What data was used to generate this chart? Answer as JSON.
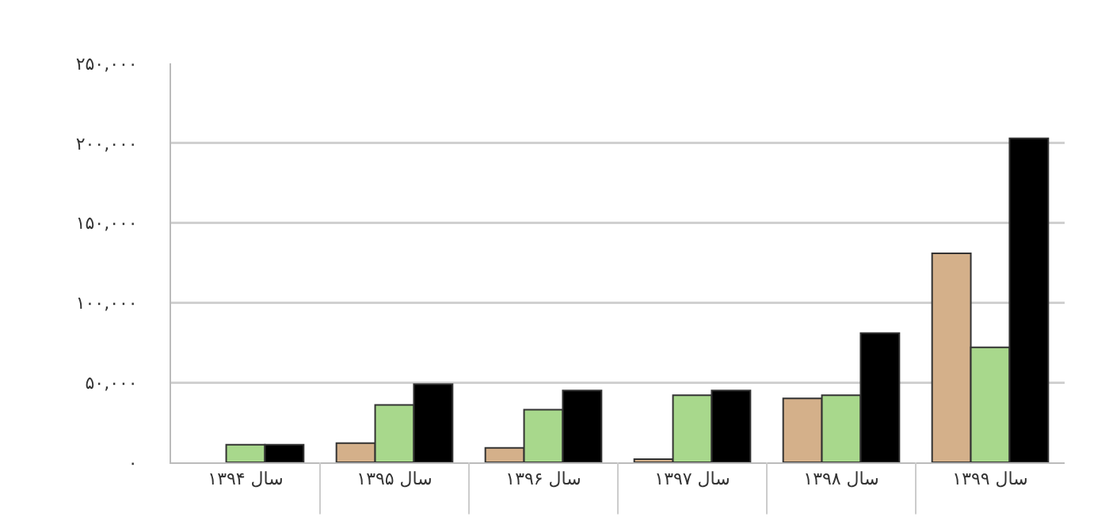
{
  "chart_data": {
    "type": "bar",
    "categories": [
      "سال ۱۳۹۴",
      "سال ۱۳۹۵",
      "سال ۱۳۹۶",
      "سال ۱۳۹۷",
      "سال ۱۳۹۸",
      "سال ۱۳۹۹"
    ],
    "series": [
      {
        "color": "#d4b08a",
        "values": [
          null,
          12000,
          9000,
          2000,
          40000,
          131000
        ]
      },
      {
        "color": "#a8d88c",
        "values": [
          11000,
          36000,
          33000,
          42000,
          42000,
          72000
        ]
      },
      {
        "color": "#000000",
        "values": [
          11000,
          49000,
          45000,
          45000,
          81000,
          203000
        ]
      }
    ],
    "ylim": [
      0,
      250000
    ],
    "yticks": [
      {
        "value": 0,
        "label": "۰"
      },
      {
        "value": 50000,
        "label": "۵۰,۰۰۰"
      },
      {
        "value": 100000,
        "label": "۱۰۰,۰۰۰"
      },
      {
        "value": 150000,
        "label": "۱۵۰,۰۰۰"
      },
      {
        "value": 200000,
        "label": "۲۰۰,۰۰۰"
      },
      {
        "value": 250000,
        "label": "۲۵۰,۰۰۰"
      }
    ],
    "grid": "y"
  }
}
